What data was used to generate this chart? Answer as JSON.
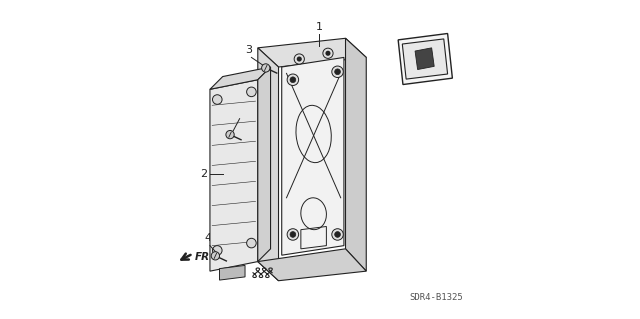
{
  "background_color": "#ffffff",
  "part_code": "SDR4-B1325",
  "line_color": "#222222",
  "fig_width": 6.4,
  "fig_height": 3.19
}
